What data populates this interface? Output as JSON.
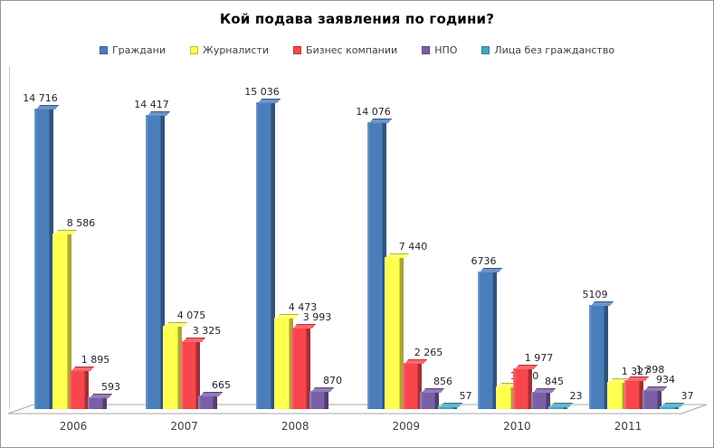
{
  "title": "Кой подава заявления по години?",
  "legend": [
    {
      "label": "Граждани",
      "color": "#4A7EBB"
    },
    {
      "label": "Журналисти",
      "color": "#FFFF4E"
    },
    {
      "label": "Бизнес компании",
      "color": "#F8474C"
    },
    {
      "label": "НПО",
      "color": "#7A5FA6"
    },
    {
      "label": "Лица без гражданство",
      "color": "#45A6C4"
    }
  ],
  "chart_data": {
    "type": "bar",
    "style": "3d-clustered-column",
    "title": "Кой подава заявления по години?",
    "xlabel": "",
    "ylabel": "",
    "categories": [
      "2006",
      "2007",
      "2008",
      "2009",
      "2010",
      "2011"
    ],
    "series": [
      {
        "name": "Граждани",
        "color": "#4A7EBB",
        "values": [
          14716,
          14417,
          15036,
          14076,
          6736,
          5109
        ],
        "labels": [
          "14 716",
          "14 417",
          "15 036",
          "14 076",
          "6736",
          "5109"
        ]
      },
      {
        "name": "Журналисти",
        "color": "#FFFF4E",
        "values": [
          8586,
          4075,
          4473,
          7440,
          1090,
          1327
        ],
        "labels": [
          "8 586",
          "4 075",
          "4 473",
          "7 440",
          "1 090",
          "1 327"
        ]
      },
      {
        "name": "Бизнес компании",
        "color": "#F8474C",
        "values": [
          1895,
          3325,
          3993,
          2265,
          1977,
          1398
        ],
        "labels": [
          "1 895",
          "3 325",
          "3 993",
          "2 265",
          "1 977",
          "1 398"
        ]
      },
      {
        "name": "НПО",
        "color": "#7A5FA6",
        "values": [
          593,
          665,
          870,
          856,
          845,
          934
        ],
        "labels": [
          "593",
          "665",
          "870",
          "856",
          "845",
          "934"
        ]
      },
      {
        "name": "Лица без гражданство",
        "color": "#45A6C4",
        "values": [
          null,
          null,
          null,
          57,
          23,
          37
        ],
        "labels": [
          "",
          "",
          "",
          "57",
          "23",
          "37"
        ]
      }
    ],
    "ylim": [
      0,
      15036
    ],
    "grid": false,
    "y_axis_labels": false,
    "legend_position": "top",
    "value_labels": true
  }
}
